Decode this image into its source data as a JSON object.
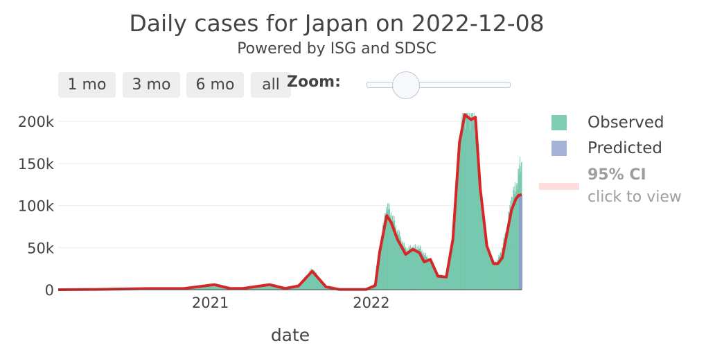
{
  "header": {
    "title": "Daily cases for Japan on 2022-12-08",
    "subtitle": "Powered by ISG and SDSC"
  },
  "controls": {
    "buttons": [
      {
        "label": "1 mo"
      },
      {
        "label": "3 mo"
      },
      {
        "label": "6 mo"
      },
      {
        "label": "all"
      }
    ],
    "zoom_label": "Zoom:",
    "zoom_slider_value": 0.25
  },
  "legend": {
    "observed": "Observed",
    "predicted": "Predicted",
    "ci_title": "95% CI",
    "ci_sub": "click to view"
  },
  "colors": {
    "observed": "#66c2a5",
    "predicted": "#8da0cb",
    "smooth": "#d62728",
    "ci": "#ffdddd",
    "grid": "#eeeeee"
  },
  "chart_data": {
    "type": "bar",
    "title": "Daily cases for Japan on 2022-12-08",
    "subtitle": "Powered by ISG and SDSC",
    "xlabel": "date",
    "ylabel": "",
    "x_ticks": [
      "2021",
      "2022"
    ],
    "y_ticks": [
      "0",
      "50k",
      "100k",
      "150k",
      "200k"
    ],
    "ylim": [
      0,
      210000
    ],
    "xlim": [
      "2020-01-22",
      "2022-12-08"
    ],
    "grid": true,
    "legend_position": "right",
    "observed": {
      "name": "Observed",
      "x": [
        "2020-01-22",
        "2020-04-15",
        "2020-08-10",
        "2020-11-01",
        "2021-01-10",
        "2021-02-15",
        "2021-03-15",
        "2021-05-15",
        "2021-06-20",
        "2021-07-20",
        "2021-08-20",
        "2021-09-20",
        "2021-10-20",
        "2021-12-20",
        "2022-01-10",
        "2022-01-20",
        "2022-02-05",
        "2022-02-15",
        "2022-03-01",
        "2022-03-20",
        "2022-04-05",
        "2022-04-20",
        "2022-05-01",
        "2022-05-15",
        "2022-06-01",
        "2022-06-20",
        "2022-07-05",
        "2022-07-20",
        "2022-08-01",
        "2022-08-15",
        "2022-08-25",
        "2022-09-05",
        "2022-09-20",
        "2022-10-05",
        "2022-10-15",
        "2022-10-25",
        "2022-11-05",
        "2022-11-15",
        "2022-11-25",
        "2022-12-01",
        "2022-12-08"
      ],
      "y": [
        0,
        300,
        1300,
        1500,
        7500,
        1500,
        1500,
        6500,
        1500,
        4500,
        25000,
        4000,
        300,
        300,
        7000,
        50000,
        100000,
        90000,
        70000,
        48000,
        50000,
        50000,
        42000,
        35000,
        18000,
        15000,
        60000,
        180000,
        210000,
        210000,
        200000,
        110000,
        50000,
        32000,
        35000,
        50000,
        75000,
        110000,
        120000,
        140000,
        150000
      ]
    },
    "predicted": {
      "name": "Predicted",
      "x": [
        "2022-12-08"
      ],
      "y": [
        112000
      ]
    },
    "smooth": {
      "x": [
        "2020-01-22",
        "2020-04-15",
        "2020-08-10",
        "2020-11-01",
        "2021-01-10",
        "2021-02-15",
        "2021-03-15",
        "2021-05-15",
        "2021-06-20",
        "2021-07-20",
        "2021-08-20",
        "2021-09-20",
        "2021-10-20",
        "2021-12-20",
        "2022-01-10",
        "2022-01-20",
        "2022-02-05",
        "2022-02-15",
        "2022-03-01",
        "2022-03-20",
        "2022-04-05",
        "2022-04-20",
        "2022-05-01",
        "2022-05-15",
        "2022-06-01",
        "2022-06-20",
        "2022-07-05",
        "2022-07-20",
        "2022-08-01",
        "2022-08-15",
        "2022-08-25",
        "2022-09-05",
        "2022-09-20",
        "2022-10-05",
        "2022-10-15",
        "2022-10-25",
        "2022-11-05",
        "2022-11-15",
        "2022-11-25",
        "2022-12-01",
        "2022-12-08"
      ],
      "y": [
        0,
        300,
        1300,
        1300,
        6000,
        1500,
        1500,
        6000,
        1500,
        4500,
        22000,
        3500,
        300,
        300,
        5000,
        45000,
        88000,
        80000,
        60000,
        42000,
        48000,
        44000,
        33000,
        36000,
        16000,
        15000,
        60000,
        175000,
        208000,
        202000,
        205000,
        120000,
        52000,
        31000,
        31000,
        38000,
        68000,
        95000,
        108000,
        112000,
        113000
      ]
    }
  }
}
